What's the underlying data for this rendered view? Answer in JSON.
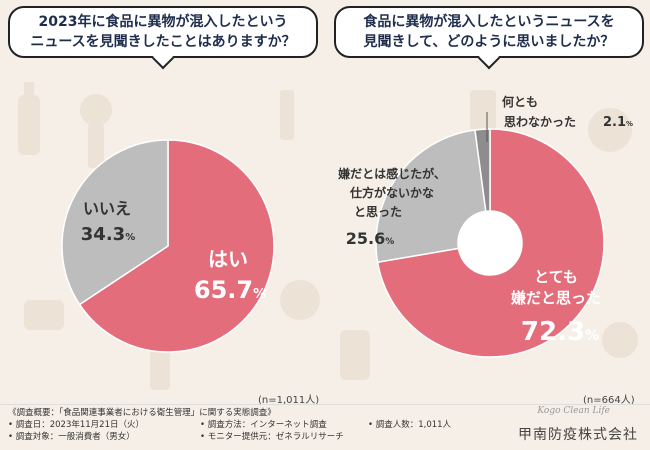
{
  "questions": {
    "left": {
      "line1": "2023年に食品に異物が混入したという",
      "line2": "ニュースを見聞きしたことはありますか？"
    },
    "right": {
      "line1": "食品に異物が混入したというニュースを",
      "line2": "見聞きして、どのように思いましたか？"
    }
  },
  "chart_data": [
    {
      "type": "pie",
      "title": "2023年に食品に異物が混入したというニュースを見聞きしたことはありますか？",
      "categories": [
        "はい",
        "いいえ"
      ],
      "values": [
        65.7,
        34.3
      ],
      "value_labels": [
        "65.7%",
        "34.3%"
      ],
      "colors": [
        "#e46d7c",
        "#bdbdbd"
      ],
      "sample_size": "(n=1,011人)"
    },
    {
      "type": "pie",
      "subtype": "donut",
      "title": "食品に異物が混入したというニュースを見聞きして、どのように思いましたか？",
      "categories": [
        "とても嫌だと思った",
        "嫌だとは感じたが、仕方がないかなと思った",
        "何とも思わなかった"
      ],
      "label_lines": [
        [
          "とても",
          "嫌だと思った"
        ],
        [
          "嫌だとは感じたが、",
          "仕方がないかな",
          "と思った"
        ],
        [
          "何とも",
          "思わなかった"
        ]
      ],
      "values": [
        72.3,
        25.6,
        2.1
      ],
      "value_labels": [
        "72.3%",
        "25.6%",
        "2.1%"
      ],
      "colors": [
        "#e46d7c",
        "#bdbdbd",
        "#8d8d8d"
      ],
      "sample_size": "(n=664人)"
    }
  ],
  "footer": {
    "summary": "《調査概要：「食品関連事業者における衛生管理」に関する実態調査》",
    "date": "• 調査日：2023年11月21日（火）",
    "method": "• 調査方法：インターネット調査",
    "count": "• 調査人数：1,011人",
    "target": "• 調査対象：一般消費者（男女）",
    "monitor": "• モニター提供元：ゼネラルリサーチ",
    "company": "甲南防疫株式会社",
    "script_logo": "Kogo Clean Life"
  }
}
